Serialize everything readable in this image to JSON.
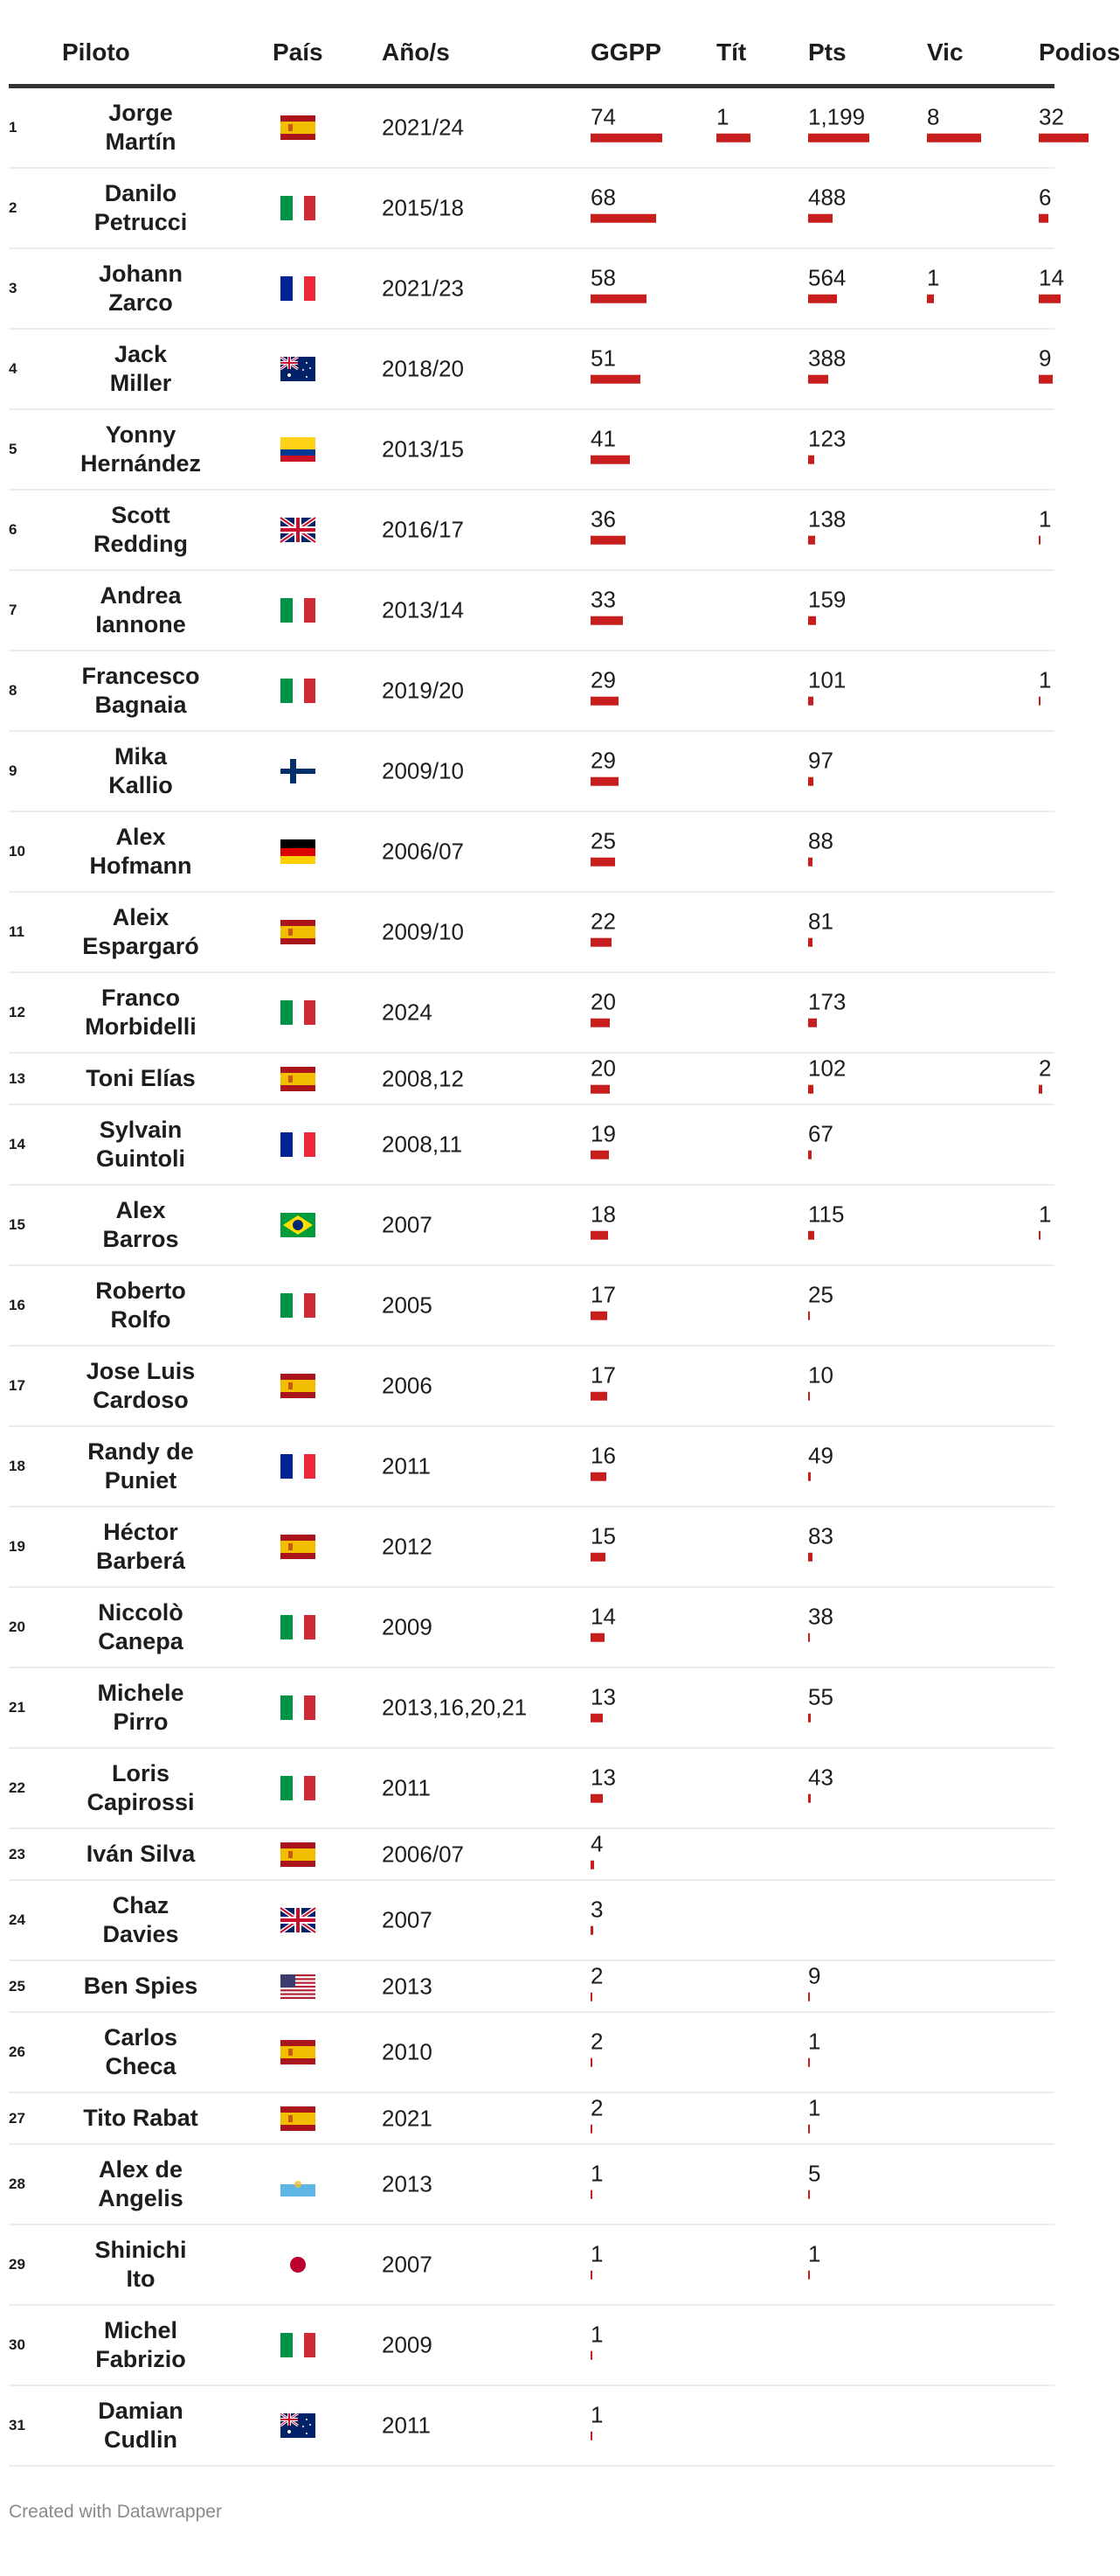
{
  "columns": {
    "rank": "",
    "pilot": "Piloto",
    "country": "País",
    "years": "Año/s",
    "ggpp": "GGPP",
    "tit": "Tít",
    "pts": "Pts",
    "vic": "Vic",
    "pod": "Podios"
  },
  "colors": {
    "bar": "#c71e1d",
    "header_rule": "#333333",
    "row_rule": "#ececec"
  },
  "rows": [
    {
      "rank": "1",
      "name": "Jorge Martín",
      "flag": "es",
      "years": "2021/24",
      "ggpp": "74",
      "tit": "1",
      "pts": "1,199",
      "vic": "8",
      "pod": "32"
    },
    {
      "rank": "2",
      "name": "Danilo Petrucci",
      "flag": "it",
      "years": "2015/18",
      "ggpp": "68",
      "tit": "",
      "pts": "488",
      "vic": "",
      "pod": "6"
    },
    {
      "rank": "3",
      "name": "Johann Zarco",
      "flag": "fr",
      "years": "2021/23",
      "ggpp": "58",
      "tit": "",
      "pts": "564",
      "vic": "1",
      "pod": "14"
    },
    {
      "rank": "4",
      "name": "Jack Miller",
      "flag": "au",
      "years": "2018/20",
      "ggpp": "51",
      "tit": "",
      "pts": "388",
      "vic": "",
      "pod": "9"
    },
    {
      "rank": "5",
      "name": "Yonny Hernández",
      "flag": "co",
      "years": "2013/15",
      "ggpp": "41",
      "tit": "",
      "pts": "123",
      "vic": "",
      "pod": ""
    },
    {
      "rank": "6",
      "name": "Scott Redding",
      "flag": "gb",
      "years": "2016/17",
      "ggpp": "36",
      "tit": "",
      "pts": "138",
      "vic": "",
      "pod": "1"
    },
    {
      "rank": "7",
      "name": "Andrea Iannone",
      "flag": "it",
      "years": "2013/14",
      "ggpp": "33",
      "tit": "",
      "pts": "159",
      "vic": "",
      "pod": ""
    },
    {
      "rank": "8",
      "name": "Francesco Bagnaia",
      "flag": "it",
      "years": "2019/20",
      "ggpp": "29",
      "tit": "",
      "pts": "101",
      "vic": "",
      "pod": "1"
    },
    {
      "rank": "9",
      "name": "Mika Kallio",
      "flag": "fi",
      "years": "2009/10",
      "ggpp": "29",
      "tit": "",
      "pts": "97",
      "vic": "",
      "pod": ""
    },
    {
      "rank": "10",
      "name": "Alex Hofmann",
      "flag": "de",
      "years": "2006/07",
      "ggpp": "25",
      "tit": "",
      "pts": "88",
      "vic": "",
      "pod": ""
    },
    {
      "rank": "11",
      "name": "Aleix Espargaró",
      "flag": "es",
      "years": "2009/10",
      "ggpp": "22",
      "tit": "",
      "pts": "81",
      "vic": "",
      "pod": ""
    },
    {
      "rank": "12",
      "name": "Franco Morbidelli",
      "flag": "it",
      "years": "2024",
      "ggpp": "20",
      "tit": "",
      "pts": "173",
      "vic": "",
      "pod": ""
    },
    {
      "rank": "13",
      "name": "Toni Elías",
      "flag": "es",
      "years": "2008,12",
      "ggpp": "20",
      "tit": "",
      "pts": "102",
      "vic": "",
      "pod": "2"
    },
    {
      "rank": "14",
      "name": "Sylvain Guintoli",
      "flag": "fr",
      "years": "2008,11",
      "ggpp": "19",
      "tit": "",
      "pts": "67",
      "vic": "",
      "pod": ""
    },
    {
      "rank": "15",
      "name": "Alex Barros",
      "flag": "br",
      "years": "2007",
      "ggpp": "18",
      "tit": "",
      "pts": "115",
      "vic": "",
      "pod": "1"
    },
    {
      "rank": "16",
      "name": "Roberto Rolfo",
      "flag": "it",
      "years": "2005",
      "ggpp": "17",
      "tit": "",
      "pts": "25",
      "vic": "",
      "pod": ""
    },
    {
      "rank": "17",
      "name": "Jose Luis Cardoso",
      "flag": "es",
      "years": "2006",
      "ggpp": "17",
      "tit": "",
      "pts": "10",
      "vic": "",
      "pod": ""
    },
    {
      "rank": "18",
      "name": "Randy de Puniet",
      "flag": "fr",
      "years": "2011",
      "ggpp": "16",
      "tit": "",
      "pts": "49",
      "vic": "",
      "pod": ""
    },
    {
      "rank": "19",
      "name": "Héctor Barberá",
      "flag": "es",
      "years": "2012",
      "ggpp": "15",
      "tit": "",
      "pts": "83",
      "vic": "",
      "pod": ""
    },
    {
      "rank": "20",
      "name": "Niccolò Canepa",
      "flag": "it",
      "years": "2009",
      "ggpp": "14",
      "tit": "",
      "pts": "38",
      "vic": "",
      "pod": ""
    },
    {
      "rank": "21",
      "name": "Michele Pirro",
      "flag": "it",
      "years": "2013,16,20,21",
      "ggpp": "13",
      "tit": "",
      "pts": "55",
      "vic": "",
      "pod": ""
    },
    {
      "rank": "22",
      "name": "Loris Capirossi",
      "flag": "it",
      "years": "2011",
      "ggpp": "13",
      "tit": "",
      "pts": "43",
      "vic": "",
      "pod": ""
    },
    {
      "rank": "23",
      "name": "Iván Silva",
      "flag": "es",
      "years": "2006/07",
      "ggpp": "4",
      "tit": "",
      "pts": "",
      "vic": "",
      "pod": ""
    },
    {
      "rank": "24",
      "name": "Chaz Davies",
      "flag": "gb",
      "years": "2007",
      "ggpp": "3",
      "tit": "",
      "pts": "",
      "vic": "",
      "pod": ""
    },
    {
      "rank": "25",
      "name": "Ben Spies",
      "flag": "us",
      "years": "2013",
      "ggpp": "2",
      "tit": "",
      "pts": "9",
      "vic": "",
      "pod": ""
    },
    {
      "rank": "26",
      "name": "Carlos Checa",
      "flag": "es",
      "years": "2010",
      "ggpp": "2",
      "tit": "",
      "pts": "1",
      "vic": "",
      "pod": ""
    },
    {
      "rank": "27",
      "name": "Tito Rabat",
      "flag": "es",
      "years": "2021",
      "ggpp": "2",
      "tit": "",
      "pts": "1",
      "vic": "",
      "pod": ""
    },
    {
      "rank": "28",
      "name": "Alex de Angelis",
      "flag": "sm",
      "years": "2013",
      "ggpp": "1",
      "tit": "",
      "pts": "5",
      "vic": "",
      "pod": ""
    },
    {
      "rank": "29",
      "name": "Shinichi Ito",
      "flag": "jp",
      "years": "2007",
      "ggpp": "1",
      "tit": "",
      "pts": "1",
      "vic": "",
      "pod": ""
    },
    {
      "rank": "30",
      "name": "Michel Fabrizio",
      "flag": "it",
      "years": "2009",
      "ggpp": "1",
      "tit": "",
      "pts": "",
      "vic": "",
      "pod": ""
    },
    {
      "rank": "31",
      "name": "Damian Cudlin",
      "flag": "au",
      "years": "2011",
      "ggpp": "1",
      "tit": "",
      "pts": "",
      "vic": "",
      "pod": ""
    }
  ],
  "footer": "Created with Datawrapper"
}
